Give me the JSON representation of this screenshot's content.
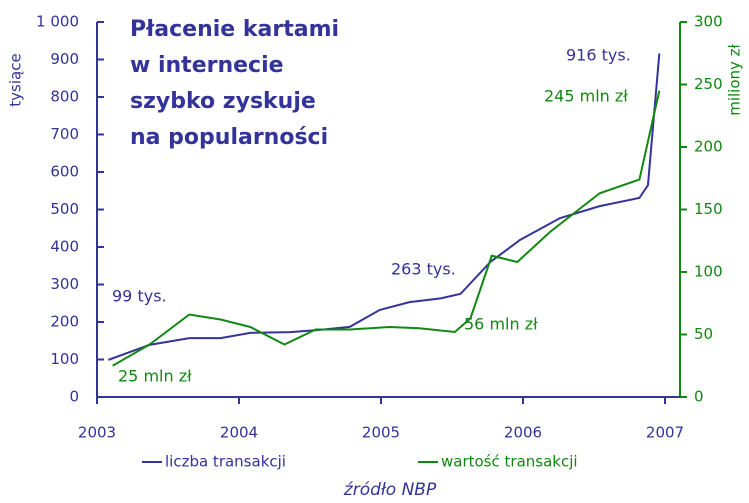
{
  "chart_data": {
    "type": "line",
    "title": [
      "Płacenie kartami",
      "w internecie",
      "szybko zyskuje",
      "na popularności"
    ],
    "ylabel": "tysiące",
    "y2label": "miliony zł",
    "source": "źródło NBP",
    "xlim": [
      2003,
      2007
    ],
    "xticks": [
      2003,
      2004,
      2005,
      2006,
      2007
    ],
    "ylim": [
      0,
      1000
    ],
    "yticks": [
      0,
      100,
      200,
      300,
      400,
      500,
      600,
      700,
      800,
      900,
      {
        "value": 1000,
        "label": "1 000"
      }
    ],
    "y2lim": [
      0,
      300
    ],
    "y2ticks": [
      0,
      50,
      100,
      150,
      200,
      250,
      300
    ],
    "series": [
      {
        "name": "liczba transakcji",
        "color": "#333399",
        "x": [
          2003.08,
          2003.37,
          2003.65,
          2003.87,
          2004.08,
          2004.36,
          2004.57,
          2004.78,
          2004.99,
          2005.2,
          2005.42,
          2005.56,
          2005.77,
          2005.98,
          2006.26,
          2006.54,
          2006.82,
          2006.88,
          2006.96
        ],
        "values": [
          99,
          139,
          157,
          157,
          171,
          173,
          179,
          187,
          232,
          253,
          263,
          275,
          360,
          419,
          477,
          509,
          531,
          565,
          916
        ]
      },
      {
        "name": "wartość transakcji",
        "color": "#118811",
        "axis": "y2",
        "x": [
          2003.11,
          2003.37,
          2003.65,
          2003.87,
          2004.08,
          2004.32,
          2004.54,
          2004.78,
          2005.06,
          2005.27,
          2005.52,
          2005.63,
          2005.78,
          2005.96,
          2006.19,
          2006.54,
          2006.82,
          2006.96
        ],
        "values": [
          25,
          42,
          66,
          62,
          56,
          42,
          54,
          54,
          56,
          55,
          52,
          63,
          113,
          108,
          132,
          163,
          174,
          245
        ]
      }
    ],
    "annotations": [
      "99 tys.",
      "263 tys.",
      "916 tys.",
      "25 mln zł",
      "56 mln zł",
      "245 mln zł"
    ]
  }
}
